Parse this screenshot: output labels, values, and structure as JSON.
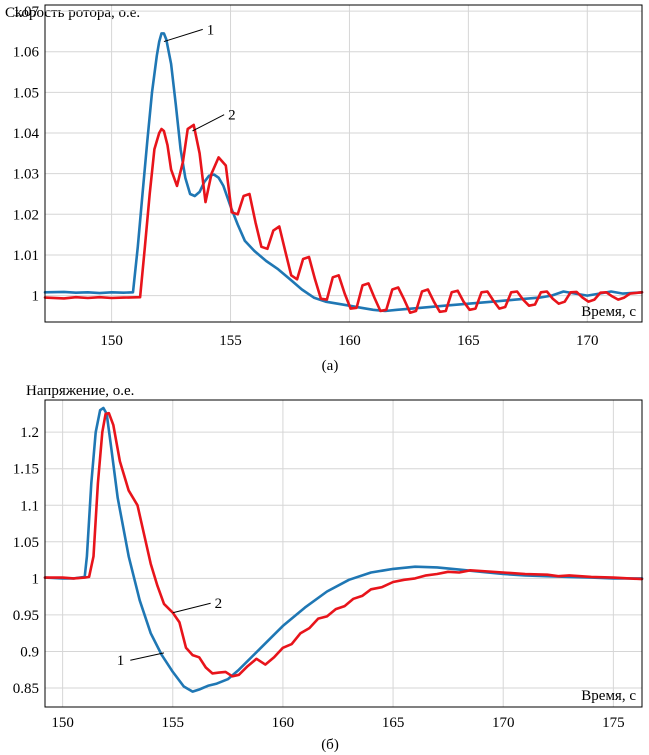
{
  "chart_data": [
    {
      "type": "line",
      "title": "Скорость ротора, о.е.",
      "xlabel": "Время, с",
      "caption": "(а)",
      "xlim": [
        147.2,
        172.3
      ],
      "ylim": [
        0.9935,
        1.0715
      ],
      "xticks": [
        150,
        155,
        160,
        165,
        170
      ],
      "xtick_labels": [
        "150",
        "155",
        "160",
        "165",
        "170"
      ],
      "yticks": [
        1.0,
        1.01,
        1.02,
        1.03,
        1.04,
        1.05,
        1.06,
        1.07
      ],
      "ytick_labels": [
        "1",
        "1.01",
        "1.02",
        "1.03",
        "1.04",
        "1.05",
        "1.06",
        "1.07"
      ],
      "grid": true,
      "annotations": [
        {
          "text": "1",
          "series": 0,
          "x": 152.2,
          "y": 1.0625,
          "label_x": 154.0,
          "label_y": 1.0655
        },
        {
          "text": "2",
          "series": 1,
          "x": 153.4,
          "y": 1.0405,
          "label_x": 154.9,
          "label_y": 1.0445
        }
      ],
      "series": [
        {
          "name": "1",
          "color": "#1f77b4",
          "x": [
            147.2,
            148.0,
            148.5,
            149.0,
            149.5,
            150.0,
            150.5,
            150.9,
            151.1,
            151.3,
            151.5,
            151.7,
            151.9,
            152.0,
            152.1,
            152.2,
            152.3,
            152.5,
            152.7,
            152.9,
            153.1,
            153.3,
            153.5,
            153.7,
            153.9,
            154.1,
            154.3,
            154.5,
            154.7,
            155.0,
            155.3,
            155.6,
            156.0,
            156.5,
            157.0,
            157.5,
            158.0,
            158.5,
            159.0,
            159.5,
            160.0,
            160.5,
            161.0,
            161.5,
            162.0,
            163.0,
            164.0,
            165.0,
            166.0,
            167.0,
            168.0,
            168.5,
            169.0,
            169.5,
            170.0,
            170.5,
            171.0,
            171.5,
            172.3
          ],
          "y": [
            1.0008,
            1.0009,
            1.0007,
            1.0008,
            1.0006,
            1.0008,
            1.0007,
            1.0008,
            1.012,
            1.025,
            1.038,
            1.05,
            1.059,
            1.0625,
            1.0645,
            1.0645,
            1.063,
            1.057,
            1.047,
            1.036,
            1.029,
            1.025,
            1.0245,
            1.0255,
            1.028,
            1.0295,
            1.0298,
            1.029,
            1.027,
            1.022,
            1.0175,
            1.0135,
            1.011,
            1.0085,
            1.0065,
            1.004,
            1.0015,
            0.9995,
            0.9985,
            0.998,
            0.9975,
            0.997,
            0.9965,
            0.9962,
            0.9965,
            0.997,
            0.9975,
            0.998,
            0.9985,
            0.999,
            0.9995,
            1.0,
            1.001,
            1.0005,
            1.0,
            1.0005,
            1.001,
            1.0005,
            1.0008
          ]
        },
        {
          "name": "2",
          "color": "#e8141b",
          "x": [
            147.2,
            148.0,
            148.5,
            149.0,
            149.5,
            150.0,
            150.5,
            151.2,
            151.4,
            151.6,
            151.8,
            152.0,
            152.1,
            152.2,
            152.35,
            152.5,
            152.75,
            153.0,
            153.2,
            153.45,
            153.7,
            153.95,
            154.2,
            154.5,
            154.8,
            155.05,
            155.3,
            155.55,
            155.8,
            156.05,
            156.3,
            156.55,
            156.8,
            157.05,
            157.3,
            157.55,
            157.8,
            158.05,
            158.3,
            158.55,
            158.8,
            159.05,
            159.3,
            159.55,
            159.8,
            160.05,
            160.3,
            160.55,
            160.8,
            161.05,
            161.3,
            161.55,
            161.8,
            162.05,
            162.3,
            162.55,
            162.8,
            163.05,
            163.3,
            163.55,
            163.8,
            164.05,
            164.3,
            164.55,
            164.8,
            165.05,
            165.3,
            165.55,
            165.8,
            166.05,
            166.3,
            166.55,
            166.8,
            167.05,
            167.3,
            167.55,
            167.8,
            168.05,
            168.3,
            168.55,
            168.8,
            169.05,
            169.3,
            169.55,
            169.8,
            170.05,
            170.3,
            170.55,
            170.8,
            171.05,
            171.3,
            171.55,
            171.8,
            172.3
          ],
          "y": [
            0.9995,
            0.9993,
            0.9996,
            0.9994,
            0.9996,
            0.9994,
            0.9995,
            0.9996,
            1.012,
            1.025,
            1.036,
            1.04,
            1.041,
            1.0405,
            1.037,
            1.031,
            1.027,
            1.033,
            1.041,
            1.042,
            1.035,
            1.023,
            1.03,
            1.034,
            1.032,
            1.0205,
            1.02,
            1.0245,
            1.025,
            1.018,
            1.012,
            1.0115,
            1.016,
            1.017,
            1.011,
            1.005,
            1.004,
            1.009,
            1.0095,
            1.004,
            0.9992,
            0.999,
            1.0045,
            1.005,
            1.0005,
            0.9968,
            0.997,
            1.0025,
            1.003,
            0.9995,
            0.9962,
            0.9965,
            1.0015,
            1.002,
            0.999,
            0.9958,
            0.9962,
            1.001,
            1.0015,
            0.9985,
            0.996,
            0.9962,
            1.0008,
            1.0012,
            0.9985,
            0.9965,
            0.9968,
            1.0008,
            1.001,
            0.9988,
            0.9968,
            0.9972,
            1.0008,
            1.001,
            0.999,
            0.9975,
            0.9978,
            1.0008,
            1.001,
            0.9992,
            0.998,
            0.9985,
            1.0008,
            1.0009,
            0.9995,
            0.9985,
            0.999,
            1.0007,
            1.0008,
            0.9998,
            0.999,
            0.9995,
            1.0005,
            1.0008
          ]
        }
      ]
    },
    {
      "type": "line",
      "title": "Напряжение, о.е.",
      "xlabel": "Время, с",
      "caption": "(б)",
      "xlim": [
        149.2,
        176.3
      ],
      "ylim": [
        0.824,
        1.244
      ],
      "xticks": [
        150,
        155,
        160,
        165,
        170,
        175
      ],
      "xtick_labels": [
        "150",
        "155",
        "160",
        "165",
        "170",
        "175"
      ],
      "yticks": [
        0.85,
        0.9,
        0.95,
        1.0,
        1.05,
        1.1,
        1.15,
        1.2
      ],
      "ytick_labels": [
        "0.85",
        "0.9",
        "0.95",
        "1",
        "1.05",
        "1.1",
        "1.15",
        "1.2"
      ],
      "grid": true,
      "annotations": [
        {
          "text": "1",
          "series": 0,
          "x": 154.6,
          "y": 0.898,
          "label_x": 152.8,
          "label_y": 0.888
        },
        {
          "text": "2",
          "series": 1,
          "x": 155.0,
          "y": 0.953,
          "label_x": 156.9,
          "label_y": 0.966
        }
      ],
      "series": [
        {
          "name": "1",
          "color": "#1f77b4",
          "x": [
            149.2,
            150.0,
            150.5,
            151.0,
            151.1,
            151.3,
            151.5,
            151.7,
            151.85,
            152.0,
            152.2,
            152.5,
            153.0,
            153.5,
            154.0,
            154.5,
            155.0,
            155.5,
            155.9,
            156.2,
            156.6,
            157.0,
            157.5,
            158.0,
            159.0,
            160.0,
            161.0,
            162.0,
            163.0,
            164.0,
            165.0,
            166.0,
            167.0,
            168.0,
            169.0,
            170.0,
            171.0,
            172.0,
            173.0,
            174.0,
            175.0,
            176.3
          ],
          "y": [
            1.001,
            1.0,
            1.0,
            1.002,
            1.03,
            1.13,
            1.2,
            1.23,
            1.233,
            1.225,
            1.18,
            1.11,
            1.03,
            0.97,
            0.925,
            0.895,
            0.872,
            0.852,
            0.845,
            0.848,
            0.853,
            0.856,
            0.862,
            0.875,
            0.905,
            0.935,
            0.96,
            0.982,
            0.998,
            1.008,
            1.013,
            1.016,
            1.015,
            1.012,
            1.009,
            1.006,
            1.004,
            1.003,
            1.002,
            1.001,
            1.0,
            1.0
          ]
        },
        {
          "name": "2",
          "color": "#e8141b",
          "x": [
            149.2,
            150.0,
            150.5,
            151.0,
            151.2,
            151.4,
            151.6,
            151.8,
            151.95,
            152.1,
            152.3,
            152.6,
            153.0,
            153.4,
            153.7,
            154.0,
            154.3,
            154.6,
            155.0,
            155.3,
            155.6,
            155.9,
            156.2,
            156.5,
            156.8,
            157.1,
            157.4,
            157.7,
            158.0,
            158.4,
            158.8,
            159.2,
            159.6,
            160.0,
            160.4,
            160.8,
            161.2,
            161.6,
            162.0,
            162.4,
            162.8,
            163.2,
            163.6,
            164.0,
            164.5,
            165.0,
            165.5,
            166.0,
            166.5,
            167.0,
            167.5,
            168.0,
            168.5,
            169.0,
            170.0,
            171.0,
            172.0,
            172.5,
            173.0,
            174.0,
            175.0,
            176.3
          ],
          "y": [
            1.001,
            1.001,
            1.0,
            1.001,
            1.002,
            1.03,
            1.13,
            1.2,
            1.225,
            1.226,
            1.21,
            1.16,
            1.12,
            1.1,
            1.06,
            1.02,
            0.99,
            0.965,
            0.953,
            0.94,
            0.905,
            0.895,
            0.892,
            0.878,
            0.87,
            0.871,
            0.872,
            0.866,
            0.868,
            0.88,
            0.89,
            0.882,
            0.892,
            0.905,
            0.91,
            0.925,
            0.932,
            0.945,
            0.948,
            0.958,
            0.962,
            0.972,
            0.976,
            0.985,
            0.988,
            0.995,
            0.998,
            1.0,
            1.004,
            1.006,
            1.009,
            1.008,
            1.011,
            1.01,
            1.008,
            1.006,
            1.005,
            1.003,
            1.004,
            1.002,
            1.001,
            0.999
          ]
        }
      ]
    }
  ]
}
